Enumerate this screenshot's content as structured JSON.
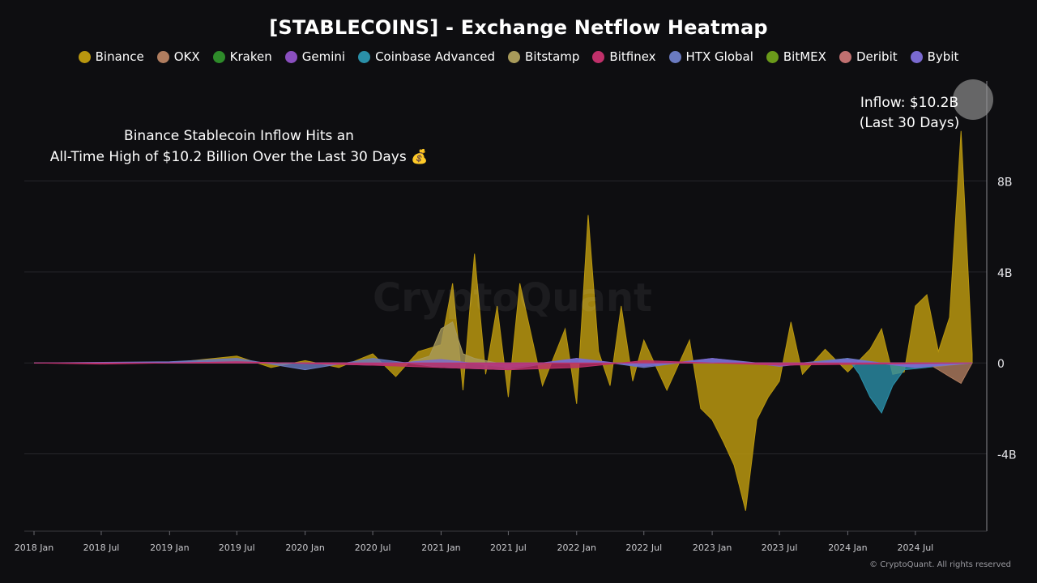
{
  "title": "[STABLECOINS] - Exchange Netflow Heatmap",
  "legend": [
    {
      "name": "Binance",
      "color": "#b8960f"
    },
    {
      "name": "OKX",
      "color": "#b07d5f"
    },
    {
      "name": "Kraken",
      "color": "#2e8b2a"
    },
    {
      "name": "Gemini",
      "color": "#8a4fbf"
    },
    {
      "name": "Coinbase Advanced",
      "color": "#2a8fa8"
    },
    {
      "name": "Bitstamp",
      "color": "#a89a5a"
    },
    {
      "name": "Bitfinex",
      "color": "#c0306a"
    },
    {
      "name": "HTX Global",
      "color": "#6a7ac0"
    },
    {
      "name": "BitMEX",
      "color": "#6a9a1a"
    },
    {
      "name": "Deribit",
      "color": "#c07070"
    },
    {
      "name": "Bybit",
      "color": "#7a6ad0"
    }
  ],
  "annotation_main_line1": "Binance Stablecoin Inflow Hits an",
  "annotation_main_line2": "All-Time High of $10.2 Billion Over the Last 30 Days 💰",
  "annotation_inflow_line1": "Inflow: $10.2B",
  "annotation_inflow_line2": "(Last 30 Days)",
  "watermark": "CryptoQuant",
  "copyright": "© CryptoQuant. All rights reserved",
  "chart_data": {
    "type": "area",
    "title": "[STABLECOINS] - Exchange Netflow Heatmap",
    "xlabel": "",
    "ylabel": "",
    "x_ticks": [
      "2018 Jan",
      "2018 Jul",
      "2019 Jan",
      "2019 Jul",
      "2020 Jan",
      "2020 Jul",
      "2021 Jan",
      "2021 Jul",
      "2022 Jan",
      "2022 Jul",
      "2023 Jan",
      "2023 Jul",
      "2024 Jan",
      "2024 Jul"
    ],
    "y_ticks": [
      -4,
      0,
      4,
      8
    ],
    "y_tick_labels": [
      "-4B",
      "0",
      "4B",
      "8B"
    ],
    "ylim": [
      -7.4,
      12.4
    ],
    "grid": true,
    "legend_position": "top-center",
    "y_axis_side": "right",
    "series": [
      {
        "name": "Binance",
        "x": [
          "2018-01",
          "2018-07",
          "2019-01",
          "2019-05",
          "2019-07",
          "2019-10",
          "2020-01",
          "2020-04",
          "2020-07",
          "2020-09",
          "2020-11",
          "2021-01",
          "2021-02",
          "2021-03",
          "2021-04",
          "2021-05",
          "2021-06",
          "2021-07",
          "2021-08",
          "2021-10",
          "2021-12",
          "2022-01",
          "2022-02",
          "2022-03",
          "2022-04",
          "2022-05",
          "2022-06",
          "2022-07",
          "2022-09",
          "2022-11",
          "2022-12",
          "2023-01",
          "2023-02",
          "2023-03",
          "2023-04",
          "2023-05",
          "2023-06",
          "2023-07",
          "2023-08",
          "2023-09",
          "2023-11",
          "2024-01",
          "2024-03",
          "2024-04",
          "2024-05",
          "2024-06",
          "2024-07",
          "2024-08",
          "2024-09",
          "2024-10",
          "2024-11",
          "2024-12"
        ],
        "values": [
          0,
          0,
          0,
          0.2,
          0.3,
          -0.2,
          0.1,
          -0.2,
          0.4,
          -0.6,
          0.5,
          0.8,
          3.5,
          -1.2,
          4.8,
          -0.5,
          2.5,
          -1.5,
          3.5,
          -1.0,
          1.5,
          -1.8,
          6.5,
          0.5,
          -1.0,
          2.5,
          -0.8,
          1.0,
          -1.2,
          1.0,
          -2.0,
          -2.5,
          -3.5,
          -4.5,
          -6.5,
          -2.5,
          -1.5,
          -0.8,
          1.8,
          -0.5,
          0.6,
          -0.4,
          0.6,
          1.5,
          -0.5,
          -0.4,
          2.5,
          3.0,
          0.5,
          2.0,
          10.2,
          0.4
        ]
      },
      {
        "name": "Coinbase Advanced",
        "x": [
          "2018-01",
          "2023-10",
          "2024-01",
          "2024-02",
          "2024-03",
          "2024-04",
          "2024-05",
          "2024-06",
          "2024-12"
        ],
        "values": [
          0,
          0,
          0.2,
          -0.5,
          -1.5,
          -2.2,
          -1.0,
          -0.3,
          0
        ]
      },
      {
        "name": "Bitstamp",
        "x": [
          "2018-01",
          "2020-10",
          "2020-12",
          "2021-01",
          "2021-02",
          "2021-03",
          "2021-04",
          "2021-06",
          "2024-12"
        ],
        "values": [
          0,
          0,
          0.3,
          1.5,
          1.8,
          0.4,
          0.2,
          0,
          0
        ]
      },
      {
        "name": "OKX",
        "x": [
          "2018-01",
          "2024-08",
          "2024-09",
          "2024-10",
          "2024-11",
          "2024-12"
        ],
        "values": [
          0,
          0,
          -0.3,
          -0.6,
          -0.9,
          0
        ]
      },
      {
        "name": "HTX Global",
        "x": [
          "2018-01",
          "2019-01",
          "2019-07",
          "2020-01",
          "2020-07",
          "2021-01",
          "2021-07",
          "2022-01",
          "2022-07",
          "2023-01",
          "2023-07",
          "2024-01",
          "2024-07",
          "2024-12"
        ],
        "values": [
          0,
          0.05,
          0.2,
          -0.3,
          0.2,
          -0.2,
          -0.3,
          0.2,
          -0.2,
          0.2,
          -0.1,
          0.2,
          -0.2,
          0
        ]
      },
      {
        "name": "Bybit",
        "x": [
          "2018-01",
          "2019-07",
          "2020-07",
          "2021-01",
          "2021-07",
          "2022-01",
          "2022-07",
          "2023-01",
          "2023-07",
          "2024-01",
          "2024-07",
          "2024-12"
        ],
        "values": [
          0,
          0.05,
          -0.1,
          0.15,
          -0.2,
          0.2,
          -0.15,
          0.2,
          -0.15,
          0.15,
          -0.2,
          0
        ]
      },
      {
        "name": "Bitfinex",
        "x": [
          "2018-01",
          "2018-07",
          "2019-07",
          "2020-07",
          "2021-01",
          "2021-07",
          "2022-01",
          "2022-07",
          "2023-07",
          "2024-12"
        ],
        "values": [
          0,
          -0.05,
          0.05,
          -0.1,
          -0.2,
          -0.3,
          -0.2,
          0.1,
          -0.1,
          0
        ]
      }
    ]
  }
}
